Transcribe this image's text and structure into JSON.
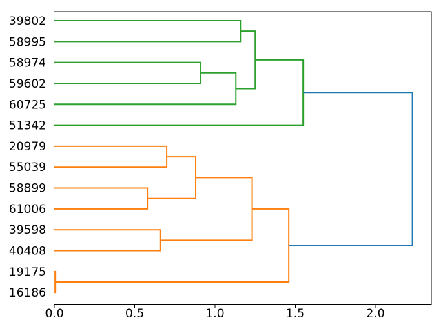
{
  "figure": {
    "background": "#ffffff",
    "title": ""
  },
  "chart_data": {
    "type": "dendrogram",
    "orientation": "right",
    "title": "",
    "xlabel": "",
    "ylabel": "",
    "grid": false,
    "legend": null,
    "xlim": [
      0,
      2.348
    ],
    "x_tick_values": [
      0.0,
      0.5,
      1.0,
      1.5,
      2.0
    ],
    "x_tick_labels": [
      "0.0",
      "0.5",
      "1.0",
      "1.5",
      "2.0"
    ],
    "leaf_labels": [
      "39802",
      "58995",
      "58974",
      "59602",
      "60725",
      "51342",
      "20979",
      "55039",
      "58899",
      "61006",
      "39598",
      "40408",
      "19175",
      "16186"
    ],
    "palette": {
      "green_cluster": "#2ca02c",
      "orange_cluster": "#ff7f0e",
      "above_threshold_link": "#1f77b4",
      "axis": "#000000",
      "background": "#ffffff"
    },
    "links": [
      {
        "c1_x": 0,
        "c1_y": 0,
        "c2_x": 0,
        "c2_y": 1,
        "height": 1.16,
        "color": "#2ca02c",
        "joins": [
          "39802",
          "58995"
        ]
      },
      {
        "c1_x": 0,
        "c1_y": 2,
        "c2_x": 0,
        "c2_y": 3,
        "height": 0.91,
        "color": "#2ca02c",
        "joins": [
          "58974",
          "59602"
        ]
      },
      {
        "c1_x": 0.91,
        "c1_y": 2.5,
        "c2_x": 0,
        "c2_y": 4,
        "height": 1.13,
        "color": "#2ca02c",
        "joins": [
          "(58974,59602)",
          "60725"
        ]
      },
      {
        "c1_x": 1.16,
        "c1_y": 0.5,
        "c2_x": 1.13,
        "c2_y": 3.25,
        "height": 1.25,
        "color": "#2ca02c",
        "joins": [
          "(39802,58995)",
          "(58974,59602,60725)"
        ]
      },
      {
        "c1_x": 1.25,
        "c1_y": 1.875,
        "c2_x": 0,
        "c2_y": 5,
        "height": 1.55,
        "color": "#2ca02c",
        "joins": [
          "green-subtree",
          "51342"
        ]
      },
      {
        "c1_x": 0,
        "c1_y": 6,
        "c2_x": 0,
        "c2_y": 7,
        "height": 0.7,
        "color": "#ff7f0e",
        "joins": [
          "20979",
          "55039"
        ]
      },
      {
        "c1_x": 0,
        "c1_y": 8,
        "c2_x": 0,
        "c2_y": 9,
        "height": 0.58,
        "color": "#ff7f0e",
        "joins": [
          "58899",
          "61006"
        ]
      },
      {
        "c1_x": 0.7,
        "c1_y": 6.5,
        "c2_x": 0.58,
        "c2_y": 8.5,
        "height": 0.88,
        "color": "#ff7f0e",
        "joins": [
          "(20979,55039)",
          "(58899,61006)"
        ]
      },
      {
        "c1_x": 0,
        "c1_y": 10,
        "c2_x": 0,
        "c2_y": 11,
        "height": 0.66,
        "color": "#ff7f0e",
        "joins": [
          "39598",
          "40408"
        ]
      },
      {
        "c1_x": 0.88,
        "c1_y": 7.5,
        "c2_x": 0.66,
        "c2_y": 10.5,
        "height": 1.23,
        "color": "#ff7f0e",
        "joins": [
          "orange-subtree-1",
          "(39598,40408)"
        ]
      },
      {
        "c1_x": 0,
        "c1_y": 12,
        "c2_x": 0,
        "c2_y": 13,
        "height": 0.005,
        "color": "#ff7f0e",
        "joins": [
          "19175",
          "16186"
        ]
      },
      {
        "c1_x": 1.23,
        "c1_y": 9.0,
        "c2_x": 0.005,
        "c2_y": 12.5,
        "height": 1.46,
        "color": "#ff7f0e",
        "joins": [
          "orange-subtree-2",
          "(19175,16186)"
        ]
      },
      {
        "c1_x": 1.55,
        "c1_y": 3.4375,
        "c2_x": 1.46,
        "c2_y": 10.75,
        "height": 2.23,
        "color": "#1f77b4",
        "joins": [
          "green-cluster",
          "orange-cluster"
        ]
      }
    ]
  }
}
